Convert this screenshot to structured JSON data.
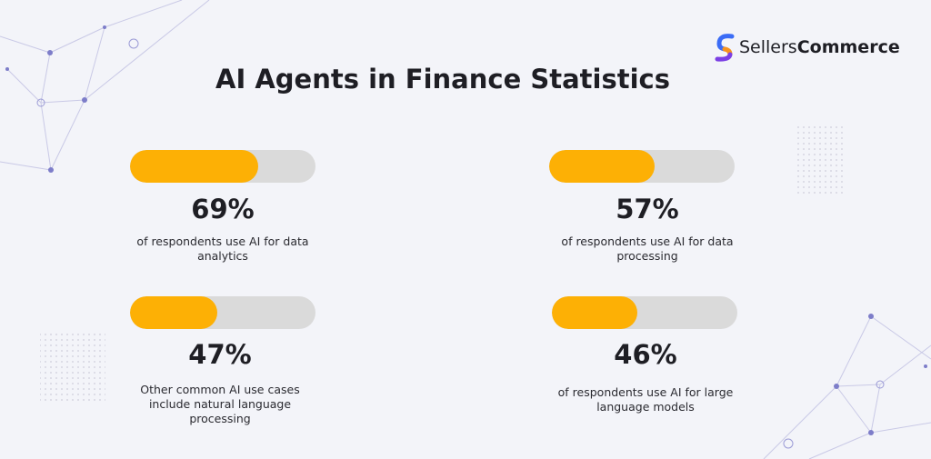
{
  "brand": {
    "light": "Sellers",
    "bold": "Commerce"
  },
  "chart_data": {
    "type": "progress",
    "title": "AI Agents in Finance Statistics",
    "categories": [
      "of respondents use AI for data analytics",
      "of respondents use AI for data processing",
      "Other common AI use cases include natural language processing",
      "of respondents use AI for large language models"
    ],
    "values": [
      69,
      57,
      47,
      46
    ],
    "value_labels": [
      "69%",
      "57%",
      "47%",
      "46%"
    ],
    "xlim": [
      0,
      100
    ],
    "color": "#fdb005"
  }
}
